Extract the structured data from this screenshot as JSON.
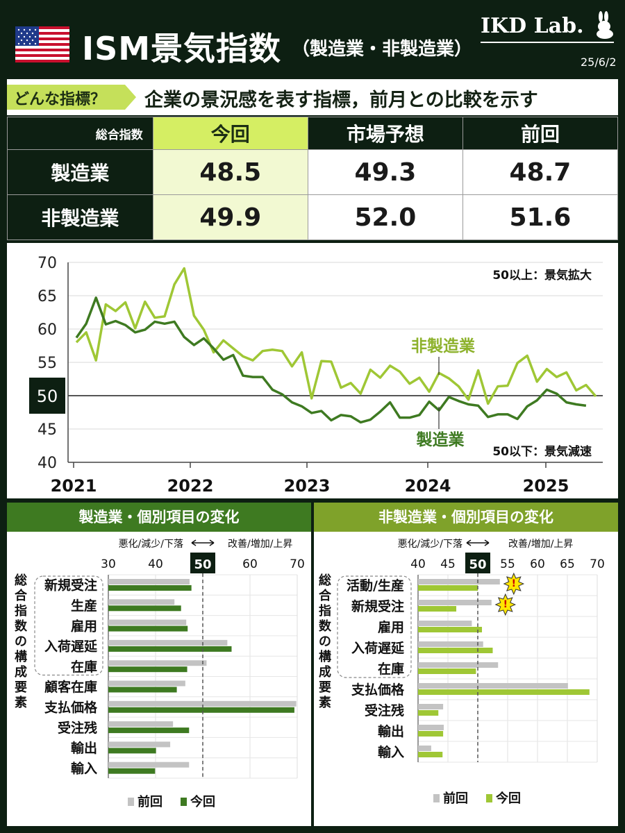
{
  "header": {
    "title": "ISM景気指数",
    "subtitle": "（製造業・非製造業）",
    "brand": "IKD Lab.",
    "date": "25/6/2",
    "what_tag": "どんな指標？",
    "what_text": "企業の景況感を表す指標，前月との比較を示す"
  },
  "summary": {
    "label": "総合指数",
    "columns": [
      "今回",
      "市場予想",
      "前回"
    ],
    "rows": [
      {
        "name": "製造業",
        "values": [
          "48.5",
          "49.3",
          "48.7"
        ]
      },
      {
        "name": "非製造業",
        "values": [
          "49.9",
          "52.0",
          "51.6"
        ]
      }
    ]
  },
  "colors": {
    "mfg": "#3e7a21",
    "svc": "#9fc735",
    "prev": "#c3c3c3",
    "dark": "#0d1f12"
  },
  "chart_data": [
    {
      "type": "line",
      "y_ticks": [
        40,
        45,
        50,
        55,
        60,
        65,
        70
      ],
      "ylim": [
        40,
        70
      ],
      "x_ticks": [
        "2021",
        "2022",
        "2023",
        "2024",
        "2025"
      ],
      "annotations": {
        "above": "50以上：景気拡大",
        "below": "50以下：景気減速"
      },
      "series": [
        {
          "name": "非製造業",
          "color": "#9fc735",
          "values": [
            58.0,
            59.5,
            55.3,
            63.7,
            62.7,
            64.0,
            60.1,
            64.1,
            61.7,
            61.9,
            66.7,
            69.1,
            62.0,
            59.9,
            56.5,
            58.3,
            57.1,
            55.9,
            55.3,
            56.7,
            56.9,
            56.7,
            54.4,
            56.5,
            49.6,
            55.2,
            55.1,
            51.2,
            51.9,
            50.3,
            53.9,
            52.7,
            54.5,
            53.6,
            51.8,
            52.7,
            50.6,
            53.4,
            52.6,
            51.4,
            49.4,
            53.8,
            48.8,
            51.4,
            51.5,
            54.9,
            56.0,
            52.1,
            54.0,
            52.8,
            53.5,
            50.8,
            51.6,
            49.9
          ]
        },
        {
          "name": "製造業",
          "color": "#3e7a21",
          "values": [
            58.7,
            60.8,
            64.7,
            60.7,
            61.2,
            60.6,
            59.5,
            59.9,
            61.1,
            60.8,
            61.1,
            58.8,
            57.6,
            58.6,
            57.1,
            55.4,
            56.1,
            53.0,
            52.8,
            52.8,
            50.9,
            50.2,
            49.0,
            48.4,
            47.4,
            47.7,
            46.3,
            47.1,
            46.9,
            46.0,
            46.4,
            47.6,
            49.0,
            46.7,
            46.7,
            47.1,
            49.1,
            47.8,
            49.8,
            49.2,
            48.7,
            48.5,
            46.8,
            47.2,
            47.2,
            46.5,
            48.4,
            49.3,
            50.9,
            50.3,
            49.0,
            48.7,
            48.5
          ]
        }
      ]
    },
    {
      "type": "bar",
      "title": "製造業・個別項目の変化",
      "axis_left": "悪化/減少/下落",
      "axis_right": "改善/増加/上昇",
      "ticks": [
        30,
        40,
        50,
        60,
        70
      ],
      "xlim": [
        30,
        70
      ],
      "group_label": "総合指数の構成要素",
      "categories": [
        "新規受注",
        "生産",
        "雇用",
        "入荷遅延",
        "在庫",
        "顧客在庫",
        "支払価格",
        "受注残",
        "輸出",
        "輸入"
      ],
      "series": [
        {
          "name": "前回",
          "color": "#c3c3c3",
          "values": [
            47.2,
            44.0,
            46.5,
            55.2,
            50.8,
            46.3,
            69.8,
            43.7,
            43.1,
            47.1
          ]
        },
        {
          "name": "今回",
          "color": "#3e7a21",
          "values": [
            47.6,
            45.4,
            46.8,
            56.1,
            46.7,
            44.5,
            69.4,
            47.1,
            40.1,
            39.9
          ]
        }
      ],
      "legend": [
        "前回",
        "今回"
      ]
    },
    {
      "type": "bar",
      "title": "非製造業・個別項目の変化",
      "axis_left": "悪化/減少/下落",
      "axis_right": "改善/増加/上昇",
      "ticks": [
        40,
        45,
        50,
        55,
        60,
        65,
        70
      ],
      "xlim": [
        40,
        70
      ],
      "group_label": "総合指数の構成要素",
      "categories": [
        "活動/生産",
        "新規受注",
        "雇用",
        "入荷遅延",
        "在庫",
        "支払価格",
        "受注残",
        "輸出",
        "輸入"
      ],
      "series": [
        {
          "name": "前回",
          "color": "#c3c3c3",
          "values": [
            53.7,
            52.3,
            49.0,
            50.9,
            53.4,
            65.1,
            44.2,
            44.3,
            42.2
          ]
        },
        {
          "name": "今回",
          "color": "#9fc735",
          "values": [
            50.0,
            46.4,
            50.7,
            52.5,
            49.7,
            68.7,
            43.4,
            44.2,
            44.1
          ]
        }
      ],
      "warn_rows": [
        0,
        1
      ],
      "legend": [
        "前回",
        "今回"
      ]
    }
  ]
}
